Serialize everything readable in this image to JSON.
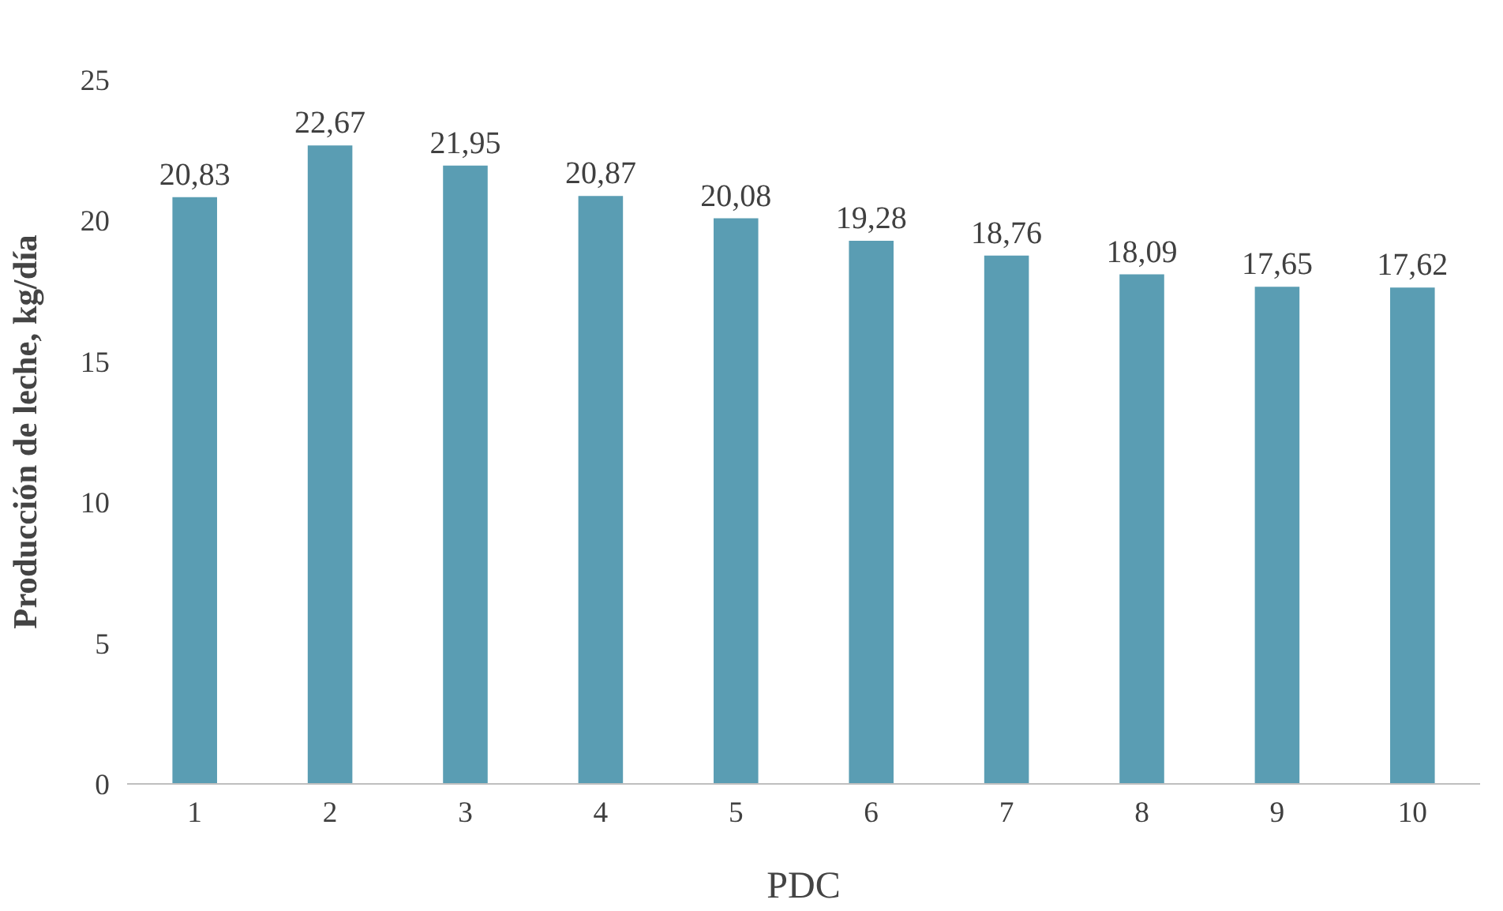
{
  "chart_data": {
    "type": "bar",
    "xlabel": "PDC",
    "ylabel": "Producción de leche, kg/día",
    "categories": [
      "1",
      "2",
      "3",
      "4",
      "5",
      "6",
      "7",
      "8",
      "9",
      "10"
    ],
    "values": [
      20.83,
      22.67,
      21.95,
      20.87,
      20.08,
      19.28,
      18.76,
      18.09,
      17.65,
      17.62
    ],
    "value_labels": [
      "20,83",
      "22,67",
      "21,95",
      "20,87",
      "20,08",
      "19,28",
      "18,76",
      "18,09",
      "17,65",
      "17,62"
    ],
    "color": "#5a9db3",
    "ylim": [
      0,
      25
    ],
    "yticks": [
      0,
      5,
      10,
      15,
      20,
      25
    ],
    "grid": false
  }
}
